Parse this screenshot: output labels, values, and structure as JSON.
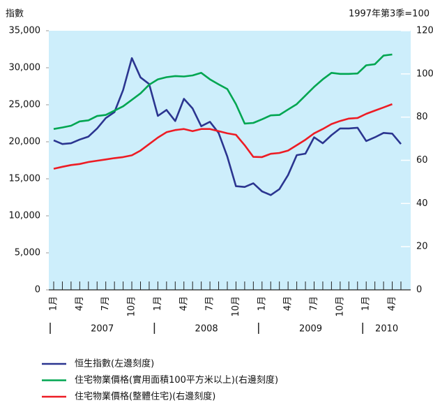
{
  "chart_data": {
    "type": "line",
    "y_label": "指數",
    "y2_label": "1997年第3季=100",
    "categories": [
      "1月",
      null,
      null,
      "4月",
      null,
      null,
      "7月",
      null,
      null,
      "10月",
      null,
      null,
      "1月",
      null,
      null,
      "4月",
      null,
      null,
      "7月",
      null,
      null,
      "10月",
      null,
      null,
      "1月",
      null,
      null,
      "4月",
      null,
      null,
      "7月",
      null,
      null,
      "10月",
      null,
      null,
      "1月",
      null,
      null,
      "4月",
      null
    ],
    "year_labels": [
      "2007",
      "2008",
      "2009",
      "2010"
    ],
    "ylim": [
      0,
      35000
    ],
    "yticks": [
      0,
      {
        "value": 5000,
        "label": "5,000"
      },
      {
        "value": 10000,
        "label": "10,000"
      },
      {
        "value": 15000,
        "label": "15,000"
      },
      {
        "value": 20000,
        "label": "20,000"
      },
      {
        "value": 25000,
        "label": "25,000"
      },
      {
        "value": 30000,
        "label": "30,000"
      },
      {
        "value": 35000,
        "label": "35,000"
      }
    ],
    "y2lim": [
      0,
      120
    ],
    "y2ticks": [
      0,
      20,
      40,
      60,
      80,
      100,
      120
    ],
    "background": "#cdeefb",
    "series": [
      {
        "name": "恒生指數(左邊刻度)",
        "color": "#2b3590",
        "axis": "y",
        "values": [
          20200,
          19700,
          19800,
          20300,
          20700,
          21800,
          23200,
          24000,
          27000,
          31300,
          28700,
          27800,
          23500,
          24300,
          22800,
          25800,
          24500,
          22100,
          22700,
          21200,
          18000,
          14000,
          13900,
          14400,
          13300,
          12800,
          13600,
          15500,
          18200,
          18400,
          20600,
          19800,
          20900,
          21800,
          21800,
          21900,
          20100,
          20600,
          21200,
          21100,
          19700
        ]
      },
      {
        "name": "住宅物業價格(實用面積100平方米以上)(右邊刻度)",
        "color": "#00a651",
        "axis": "y2",
        "values": [
          74.5,
          75.2,
          76,
          78,
          78.5,
          80.5,
          81,
          83,
          85,
          88,
          91,
          95,
          97.5,
          98.5,
          99,
          98.8,
          99.3,
          100.5,
          97.5,
          95.2,
          93,
          86,
          77,
          77.3,
          79,
          80.8,
          81,
          83.5,
          86,
          90,
          94,
          97.5,
          100.5,
          100,
          100,
          100.2,
          104,
          104.5,
          108.5,
          109,
          null
        ]
      },
      {
        "name": "住宅物業價格(整體住宅)(右邊刻度)",
        "color": "#ed1c24",
        "axis": "y2",
        "values": [
          56.1,
          57,
          57.8,
          58.3,
          59.2,
          59.8,
          60.4,
          61,
          61.5,
          62.3,
          64.5,
          67.5,
          70.5,
          73,
          74,
          74.5,
          73.5,
          74.5,
          74.5,
          73.5,
          72.5,
          71.8,
          67,
          61.6,
          61.5,
          63,
          63.4,
          64.5,
          67,
          69.5,
          72.5,
          74.5,
          76.8,
          78.2,
          79.3,
          79.6,
          81.5,
          83,
          84.5,
          86,
          null
        ]
      }
    ]
  }
}
